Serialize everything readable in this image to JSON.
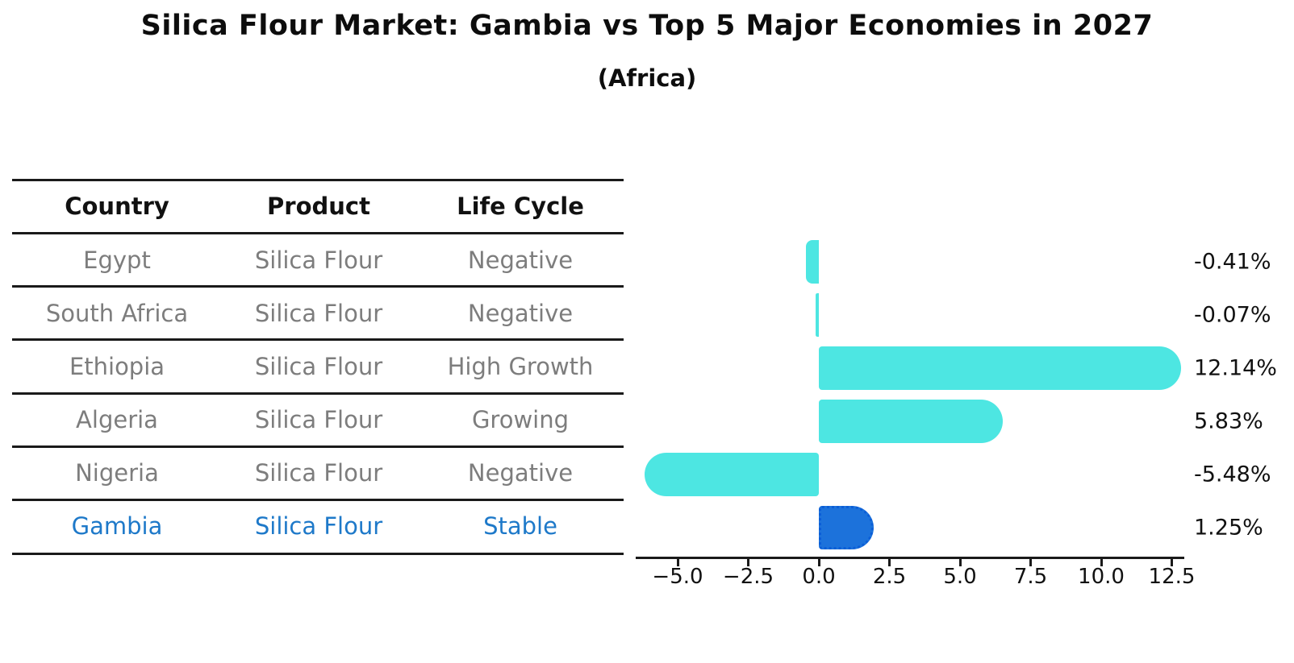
{
  "title": "Silica Flour Market: Gambia vs Top 5 Major Economies in 2027",
  "subtitle": "(Africa)",
  "table": {
    "headers": [
      "Country",
      "Product",
      "Life Cycle"
    ],
    "rows": [
      {
        "country": "Egypt",
        "product": "Silica Flour",
        "life_cycle": "Negative",
        "highlight": false
      },
      {
        "country": "South Africa",
        "product": "Silica Flour",
        "life_cycle": "Negative",
        "highlight": false
      },
      {
        "country": "Ethiopia",
        "product": "Silica Flour",
        "life_cycle": "High Growth",
        "highlight": false
      },
      {
        "country": "Algeria",
        "product": "Silica Flour",
        "life_cycle": "Growing",
        "highlight": false
      },
      {
        "country": "Nigeria",
        "product": "Silica Flour",
        "life_cycle": "Negative",
        "highlight": false
      },
      {
        "country": "Gambia",
        "product": "Silica Flour",
        "life_cycle": "Stable",
        "highlight": true
      }
    ]
  },
  "chart_data": {
    "type": "bar",
    "orientation": "horizontal",
    "title": "Silica Flour Market: Gambia vs Top 5 Major Economies in 2027 (Africa)",
    "categories": [
      "Egypt",
      "South Africa",
      "Ethiopia",
      "Algeria",
      "Nigeria",
      "Gambia"
    ],
    "values": [
      -0.41,
      -0.07,
      12.14,
      5.83,
      -5.48,
      1.25
    ],
    "value_labels": [
      "-0.41%",
      "-0.07%",
      "12.14%",
      "5.83%",
      "-5.48%",
      "1.25%"
    ],
    "x_ticks": [
      -5.0,
      -2.5,
      0.0,
      2.5,
      5.0,
      7.5,
      10.0,
      12.5
    ],
    "x_tick_labels": [
      "−5.0",
      "−2.5",
      "0.0",
      "2.5",
      "5.0",
      "7.5",
      "10.0",
      "12.5"
    ],
    "xlim": [
      -6.5,
      13.0
    ],
    "grid": false,
    "legend": false,
    "bar_color": "#4DE6E2",
    "highlight_index": 5,
    "highlight_bar_color": "#1C72DB",
    "highlight_border_color": "#0B5ED7"
  },
  "colors": {
    "text": "#0d0d0d",
    "muted_text": "#7d7d7d",
    "highlight_text": "#1E79C9",
    "line": "#1a1a1a"
  }
}
